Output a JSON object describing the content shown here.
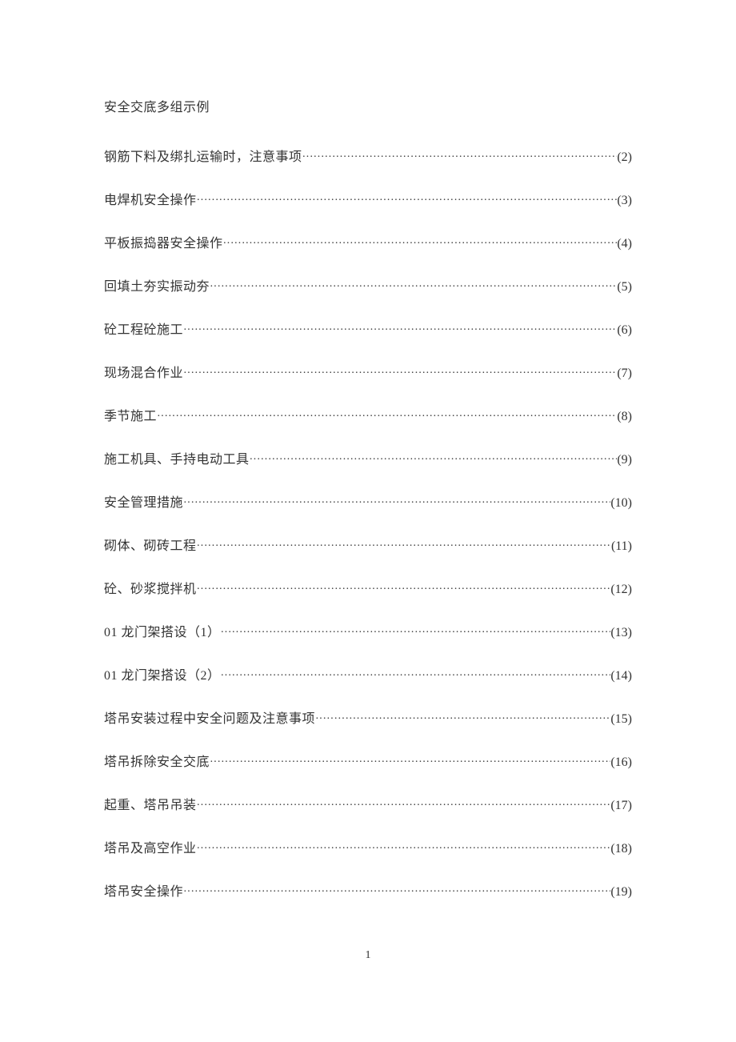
{
  "document": {
    "title": "安全交底多组示例",
    "page_number": "1",
    "background_color": "#ffffff",
    "text_color": "#333333",
    "title_fontsize": 16,
    "entry_fontsize": 16,
    "toc_entries": [
      {
        "label": "钢筋下料及绑扎运输时，注意事项",
        "page": "(2)"
      },
      {
        "label": "电焊机安全操作",
        "page": "(3)"
      },
      {
        "label": "平板振捣器安全操作",
        "page": "(4)"
      },
      {
        "label": "回填土夯实振动夯",
        "page": "(5)"
      },
      {
        "label": "砼工程砼施工",
        "page": "(6)"
      },
      {
        "label": "现场混合作业",
        "page": "(7)"
      },
      {
        "label": "季节施工",
        "page": "(8)"
      },
      {
        "label": "施工机具、手持电动工具",
        "page": "(9)"
      },
      {
        "label": "安全管理措施",
        "page": "(10)"
      },
      {
        "label": "砌体、砌砖工程",
        "page": "(11)"
      },
      {
        "label": "砼、砂浆搅拌机",
        "page": "(12)"
      },
      {
        "label": "01 龙门架搭设（1）",
        "page": "(13)"
      },
      {
        "label": "01 龙门架搭设（2）",
        "page": "(14)"
      },
      {
        "label": "塔吊安装过程中安全问题及注意事项",
        "page": "(15)"
      },
      {
        "label": "塔吊拆除安全交底",
        "page": "(16)"
      },
      {
        "label": "起重、塔吊吊装",
        "page": "(17)"
      },
      {
        "label": "塔吊及高空作业",
        "page": "(18)"
      },
      {
        "label": "塔吊安全操作",
        "page": "(19)"
      }
    ]
  }
}
